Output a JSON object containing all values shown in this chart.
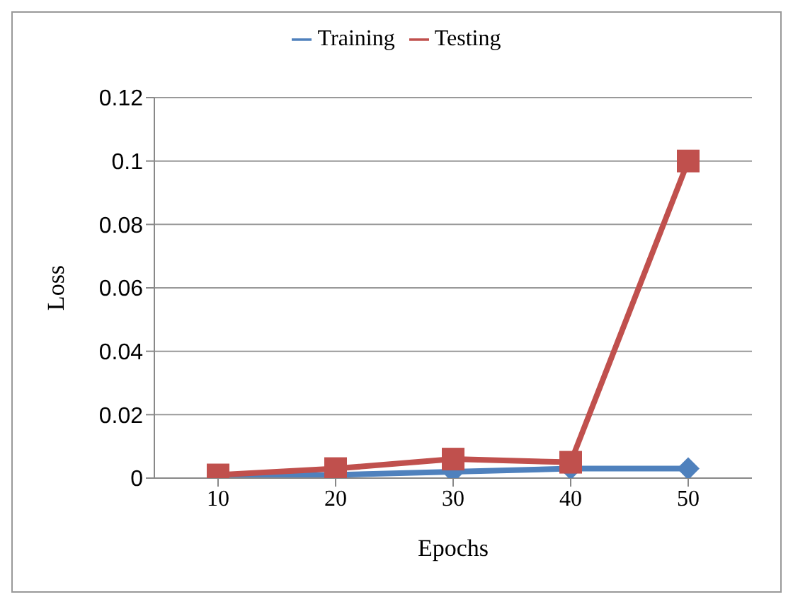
{
  "chart_data": {
    "type": "line",
    "xlabel": "Epochs",
    "ylabel": "Loss",
    "categories": [
      "10",
      "20",
      "30",
      "40",
      "50"
    ],
    "series": [
      {
        "name": "Training",
        "color": "#4f81bd",
        "marker": "diamond",
        "values": [
          0.0005,
          0.001,
          0.002,
          0.003,
          0.003
        ]
      },
      {
        "name": "Testing",
        "color": "#c0504d",
        "marker": "square",
        "values": [
          0.001,
          0.003,
          0.006,
          0.005,
          0.1
        ]
      }
    ],
    "ylim": [
      0,
      0.12
    ],
    "yticks": [
      0,
      0.02,
      0.04,
      0.06,
      0.08,
      0.1,
      0.12
    ],
    "grid": "y",
    "legend": "top"
  }
}
